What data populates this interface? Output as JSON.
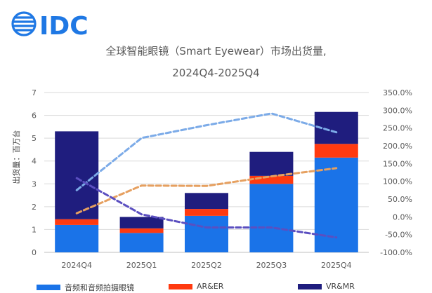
{
  "brand": {
    "logo_text": "IDC",
    "logo_color": "#1f78e4"
  },
  "chart_data": {
    "type": "bar",
    "stacked": true,
    "title": "全球智能眼镜（Smart Eyewear）市场出货量,",
    "subtitle": "2024Q4-2025Q4",
    "ylabel": "出货量：百万台",
    "categories": [
      "2024Q4",
      "2025Q1",
      "2025Q2",
      "2025Q3",
      "2025Q4"
    ],
    "ylim": [
      0,
      7
    ],
    "yticks": [
      "0",
      "1",
      "2",
      "3",
      "4",
      "5",
      "6",
      "7"
    ],
    "y2lim": [
      -100,
      350
    ],
    "y2ticks": [
      "-100.0%",
      "-50.0%",
      "0.0%",
      "50.0%",
      "100.0%",
      "150.0%",
      "200.0%",
      "250.0%",
      "300.0%",
      "350.0%"
    ],
    "series": [
      {
        "name": "音频和音频拍摄眼镜",
        "color": "#1a73e8",
        "values": [
          1.2,
          0.85,
          1.6,
          3.0,
          4.15
        ]
      },
      {
        "name": "AR&ER",
        "color": "#ff3a10",
        "values": [
          0.25,
          0.2,
          0.3,
          0.35,
          0.6
        ]
      },
      {
        "name": "VR&MR",
        "color": "#1f1d7e",
        "values": [
          3.85,
          0.5,
          0.7,
          1.05,
          1.4
        ]
      }
    ],
    "lines": [
      {
        "color": "#7cabe8",
        "values": [
          75,
          222,
          258,
          291,
          238
        ]
      },
      {
        "color": "#e6a060",
        "values": [
          10,
          88,
          87,
          114,
          137
        ]
      },
      {
        "color": "#5b4fc0",
        "values": [
          109,
          7,
          -30,
          -30,
          -58
        ]
      }
    ]
  }
}
